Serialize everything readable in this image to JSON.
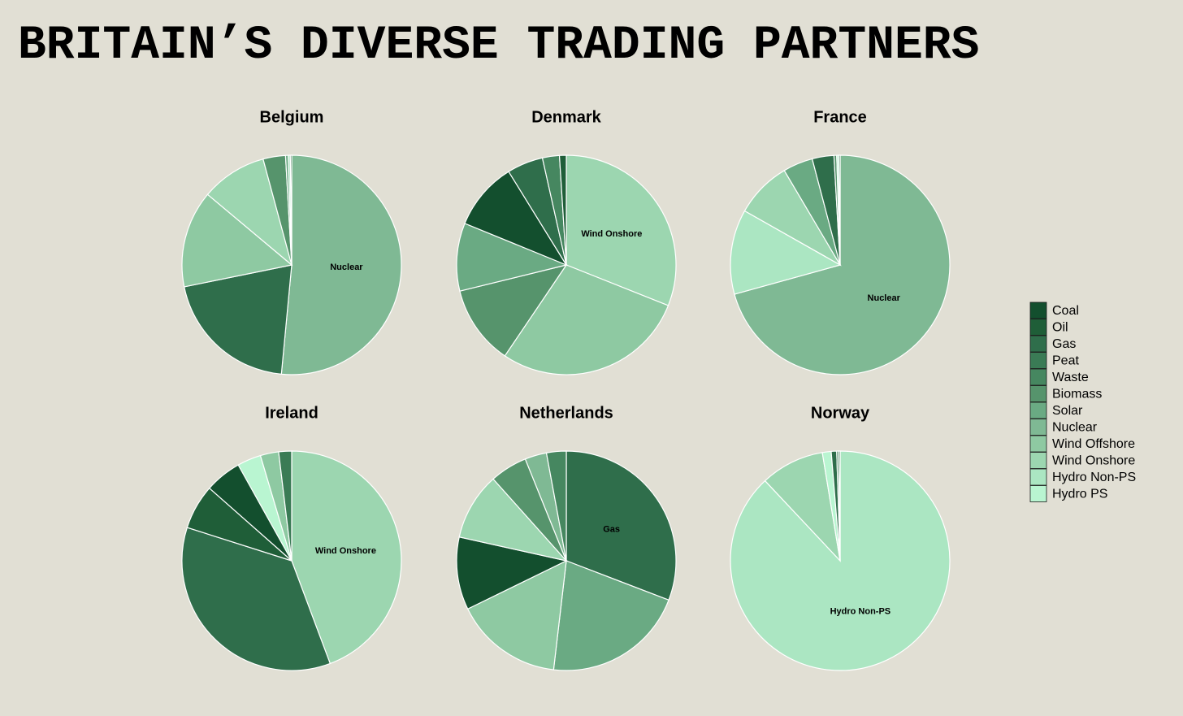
{
  "title": "BRITAIN’S DIVERSE TRADING PARTNERS",
  "legend": {
    "categories": [
      "Coal",
      "Oil",
      "Gas",
      "Peat",
      "Waste",
      "Biomass",
      "Solar",
      "Nuclear",
      "Wind Offshore",
      "Wind Onshore",
      "Hydro Non-PS",
      "Hydro PS"
    ],
    "colors": [
      "#134f2e",
      "#1f5e38",
      "#2f6e4b",
      "#3a7b55",
      "#468760",
      "#56946c",
      "#6aaa83",
      "#7fb994",
      "#8ec9a2",
      "#9cd6b0",
      "#abe6c2",
      "#b9f5d1"
    ]
  },
  "chart_data": [
    {
      "type": "pie",
      "title": "Belgium",
      "categories": [
        "Nuclear",
        "Gas",
        "Wind Offshore",
        "Wind Onshore",
        "Biomass",
        "Solar",
        "Hydro Non-PS",
        "Oil"
      ],
      "values": [
        51.5,
        20.3,
        14.3,
        9.7,
        3.3,
        0.4,
        0.3,
        0.2
      ]
    },
    {
      "type": "pie",
      "title": "Denmark",
      "categories": [
        "Wind Onshore",
        "Wind Offshore",
        "Biomass",
        "Solar",
        "Coal",
        "Gas",
        "Waste",
        "Oil"
      ],
      "values": [
        31,
        28.4,
        11.7,
        10,
        10,
        5.3,
        2.5,
        1
      ]
    },
    {
      "type": "pie",
      "title": "France",
      "categories": [
        "Nuclear",
        "Hydro Non-PS",
        "Wind Onshore",
        "Solar",
        "Gas",
        "Biomass",
        "Hydro PS",
        "Oil"
      ],
      "values": [
        70.7,
        12.5,
        8.3,
        4.4,
        3.2,
        0.4,
        0.3,
        0.2
      ]
    },
    {
      "type": "pie",
      "title": "Ireland",
      "categories": [
        "Wind Onshore",
        "Gas",
        "Oil",
        "Coal",
        "Hydro PS",
        "Wind Offshore",
        "Peat"
      ],
      "values": [
        44.3,
        35.6,
        6.6,
        5.4,
        3.5,
        2.7,
        1.9
      ]
    },
    {
      "type": "pie",
      "title": "Netherlands",
      "categories": [
        "Gas",
        "Solar",
        "Wind Offshore",
        "Coal",
        "Wind Onshore",
        "Biomass",
        "Nuclear",
        "Waste"
      ],
      "values": [
        30.8,
        21,
        15.9,
        10.7,
        9.9,
        5.5,
        3.2,
        2.9
      ]
    },
    {
      "type": "pie",
      "title": "Norway",
      "categories": [
        "Hydro Non-PS",
        "Wind Onshore",
        "Hydro PS",
        "Gas",
        "Waste",
        "Oil"
      ],
      "values": [
        88,
        9.4,
        1.3,
        0.8,
        0.3,
        0.2
      ]
    }
  ]
}
